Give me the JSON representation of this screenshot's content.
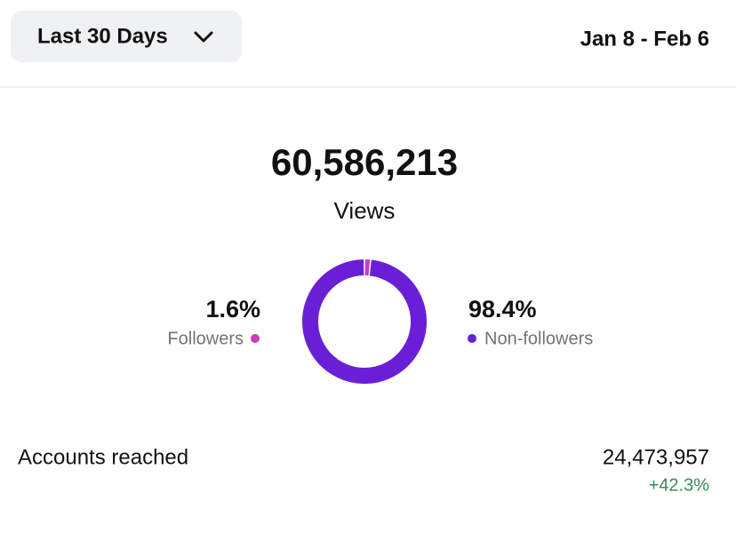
{
  "header": {
    "range_button": "Last 30 Days",
    "date_range": "Jan 8 - Feb 6"
  },
  "views": {
    "value": "60,586,213",
    "label": "Views"
  },
  "chart_data": {
    "type": "donut",
    "categories": [
      "Followers",
      "Non-followers"
    ],
    "values": [
      1.6,
      98.4
    ],
    "value_labels": [
      "1.6%",
      "98.4%"
    ],
    "colors": [
      "#c93bbf",
      "#6a1fd6"
    ]
  },
  "accounts_reached": {
    "label": "Accounts reached",
    "value": "24,473,957",
    "change": "+42.3%"
  }
}
